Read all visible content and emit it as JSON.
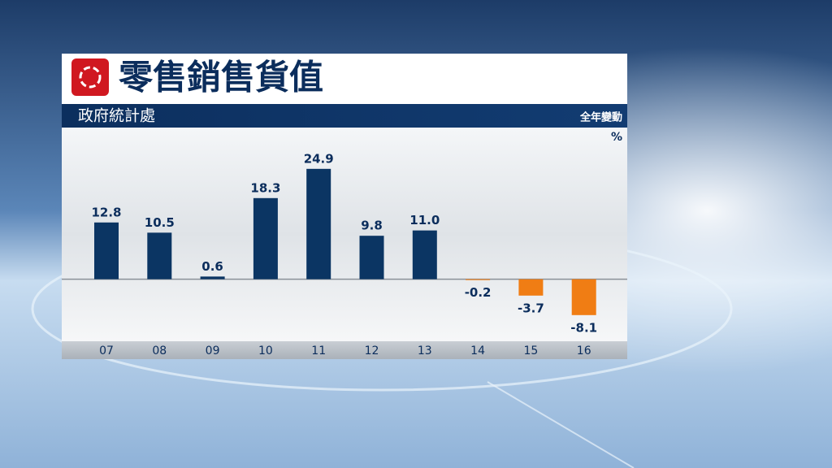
{
  "chart_data": {
    "type": "bar",
    "title": "零售銷售貨值",
    "subtitle": "政府統計處",
    "note": "全年變動",
    "unit": "%",
    "categories": [
      "07",
      "08",
      "09",
      "10",
      "11",
      "12",
      "13",
      "14",
      "15",
      "16"
    ],
    "values": [
      12.8,
      10.5,
      0.6,
      18.3,
      24.9,
      9.8,
      11.0,
      -0.2,
      -3.7,
      -8.1
    ],
    "value_labels": [
      "12.8",
      "10.5",
      "0.6",
      "18.3",
      "24.9",
      "9.8",
      "11.0",
      "-0.2",
      "-3.7",
      "-8.1"
    ],
    "colors": [
      "#0b3563",
      "#0b3563",
      "#0b3563",
      "#0b3563",
      "#0b3563",
      "#0b3563",
      "#0b3563",
      "#f07d14",
      "#f07d14",
      "#f07d14"
    ],
    "ylim": [
      -14,
      30
    ]
  }
}
